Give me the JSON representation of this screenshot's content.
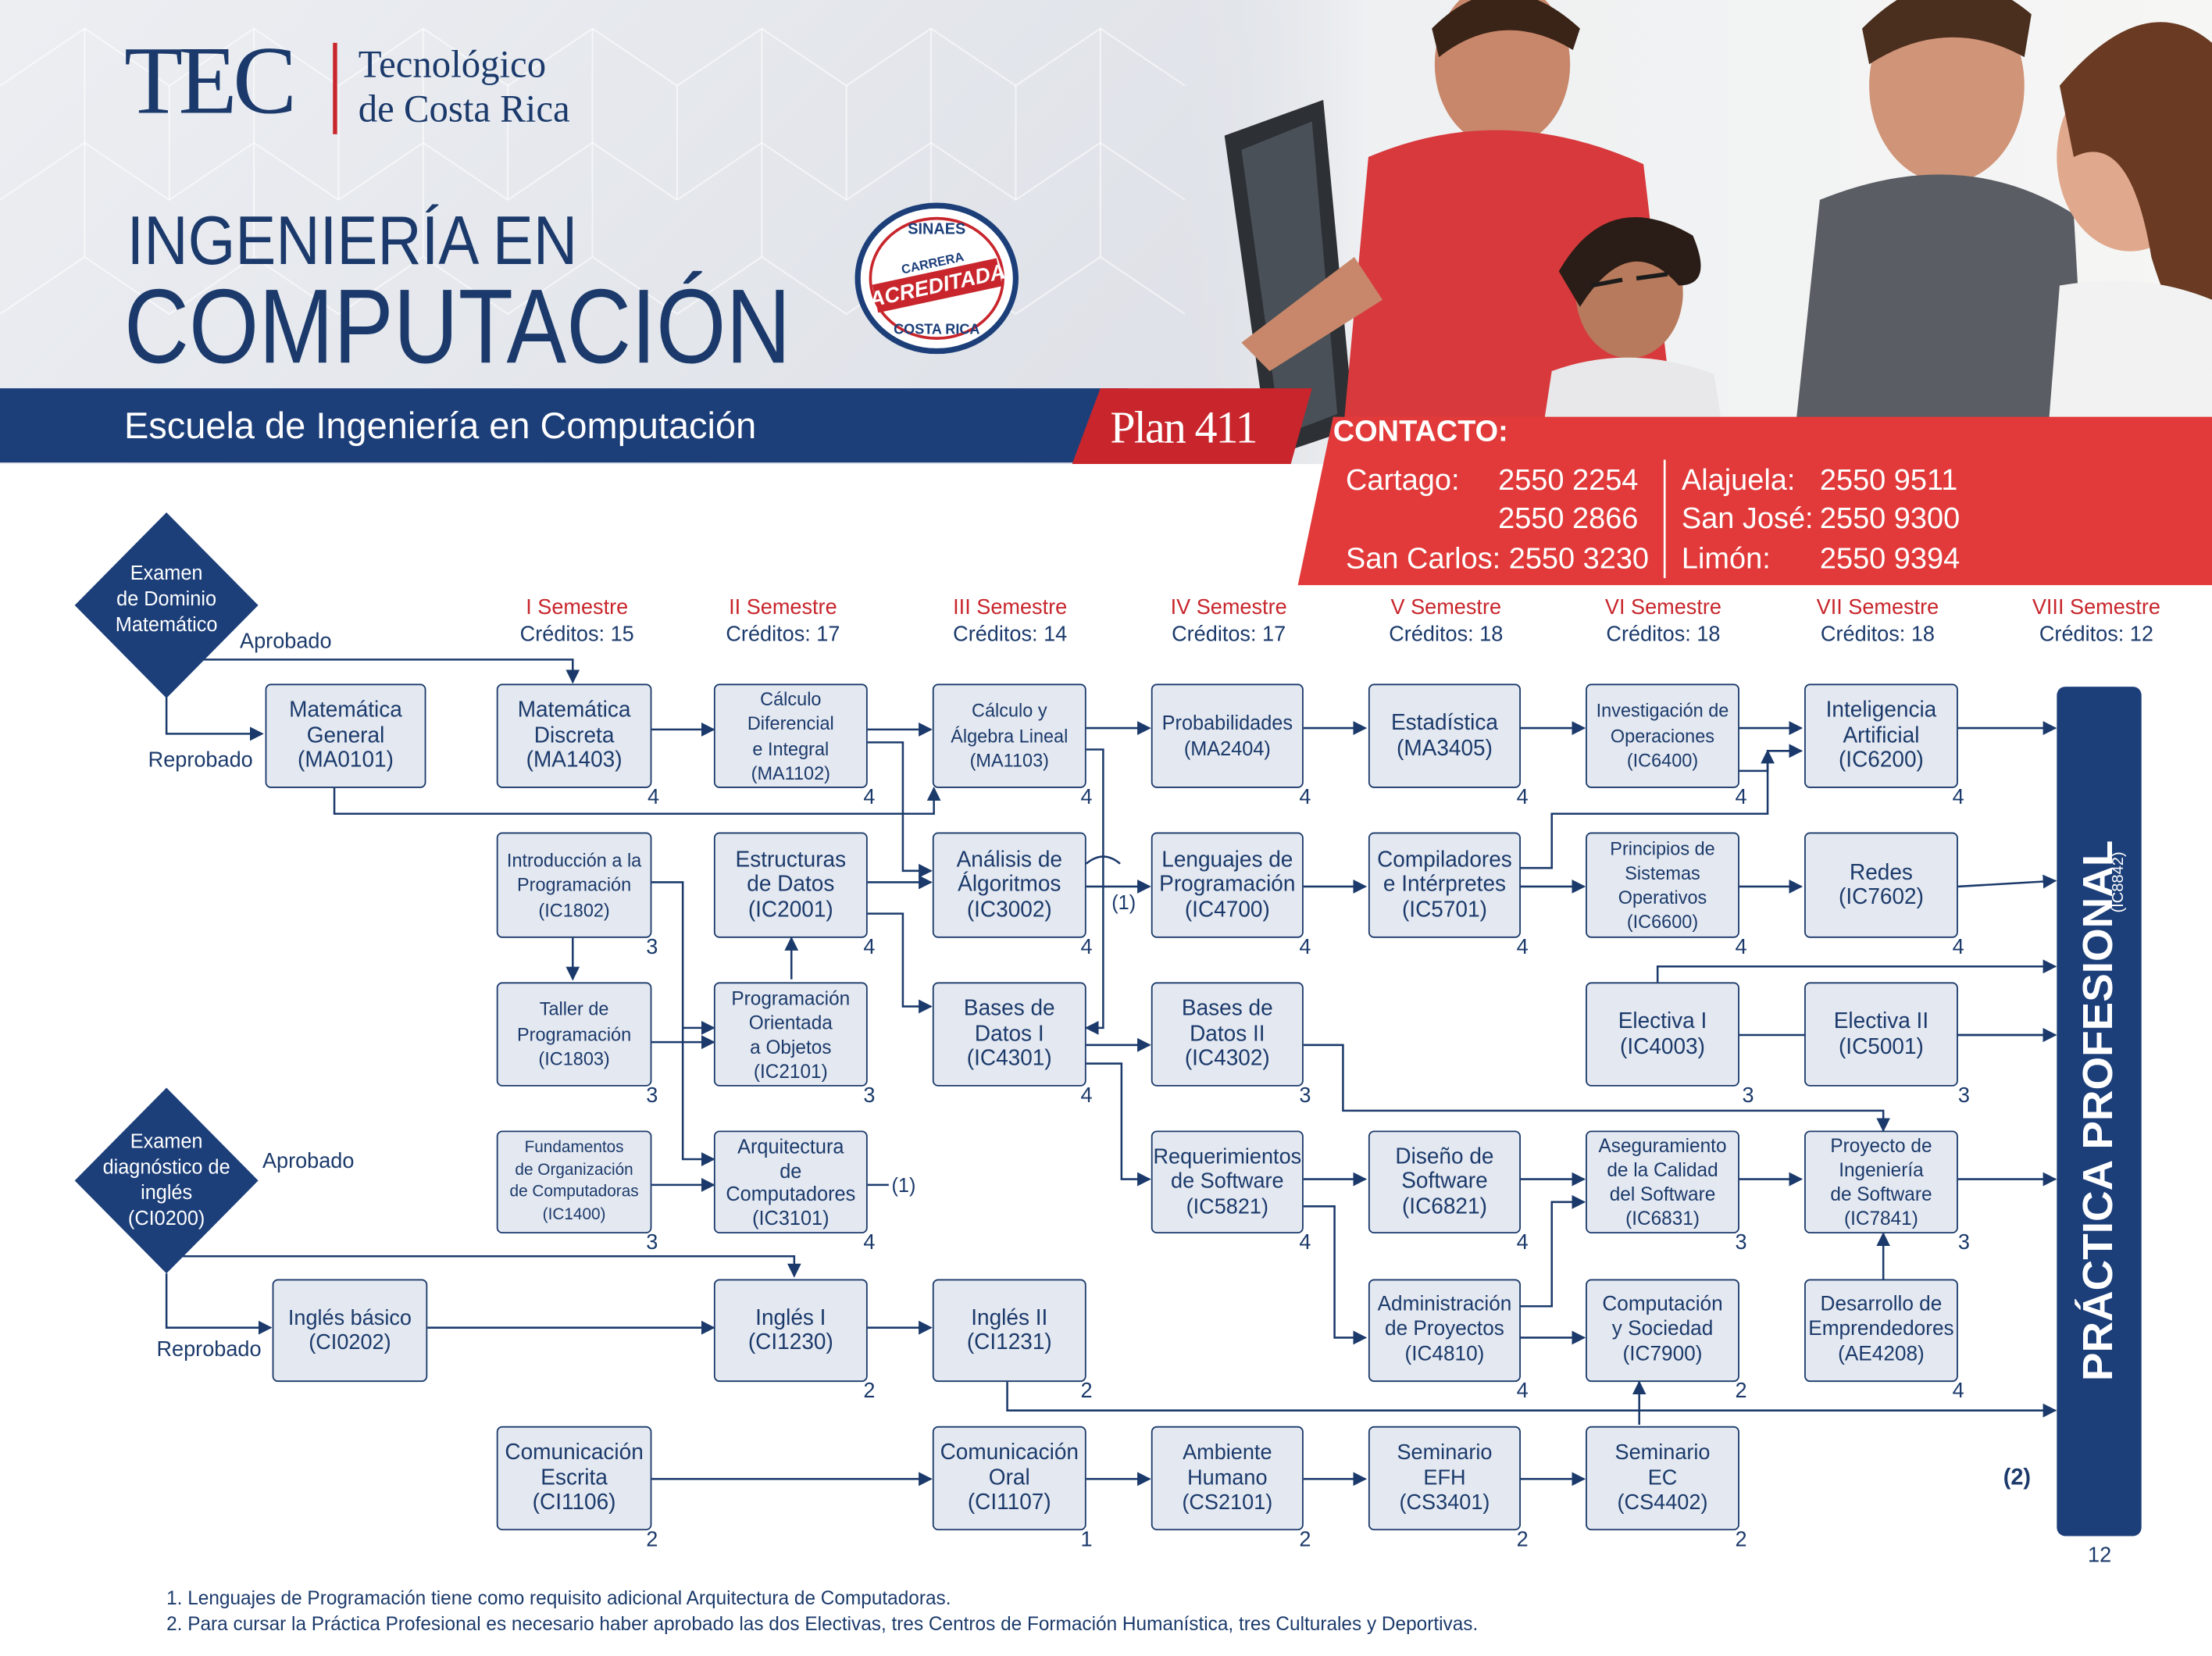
{
  "header": {
    "logo_acronym": "TEC",
    "logo_name_line1": "Tecnológico",
    "logo_name_line2": "de Costa Rica",
    "title_line1": "INGENIERÍA EN",
    "title_line2": "COMPUTACIÓN",
    "school": "Escuela de Ingeniería en Computación",
    "plan": "Plan 411",
    "seal": {
      "top": "SINAES",
      "middle1": "CARRERA",
      "middle2": "ACREDITADA",
      "bottom": "COSTA RICA"
    }
  },
  "contact": {
    "title": "CONTACTO:",
    "cartago_label": "Cartago:",
    "cartago_phone1": "2550 2254",
    "cartago_phone2": "2550 2866",
    "sancarlos": "San Carlos: 2550 3230",
    "alajuela_label": "Alajuela:",
    "alajuela_phone": "2550 9511",
    "sanjose_label": "San José:",
    "sanjose_phone": "2550 9300",
    "limon_label": "Limón:",
    "limon_phone": "2550 9394"
  },
  "semesters": [
    {
      "name": "I Semestre",
      "credits": "Créditos: 15"
    },
    {
      "name": "II Semestre",
      "credits": "Créditos: 17"
    },
    {
      "name": "III Semestre",
      "credits": "Créditos: 14"
    },
    {
      "name": "IV Semestre",
      "credits": "Créditos: 17"
    },
    {
      "name": "V Semestre",
      "credits": "Créditos: 18"
    },
    {
      "name": "VI Semestre",
      "credits": "Créditos: 18"
    },
    {
      "name": "VII Semestre",
      "credits": "Créditos: 18"
    },
    {
      "name": "VIII Semestre",
      "credits": "Créditos: 12"
    }
  ],
  "decisions": {
    "math": {
      "text": "Examen\nde Dominio\nMatemático",
      "pass": "Aprobado",
      "fail": "Reprobado"
    },
    "english": {
      "text": "Examen\ndiagnóstico de\ninglés\n(CI0200)",
      "pass": "Aprobado",
      "fail": "Reprobado"
    }
  },
  "courses": [
    {
      "text": "Matemática\nGeneral\n(MA0101)",
      "credits": ""
    },
    {
      "text": "Matemática\nDiscreta\n(MA1403)",
      "credits": "4"
    },
    {
      "text": "Cálculo Diferencial\ne Integral\n(MA1102)",
      "credits": "4"
    },
    {
      "text": "Cálculo y\nÁlgebra Lineal\n(MA1103)",
      "credits": "4"
    },
    {
      "text": "Probabilidades\n(MA2404)",
      "credits": "4"
    },
    {
      "text": "Estadística\n(MA3405)",
      "credits": "4"
    },
    {
      "text": "Investigación de\nOperaciones\n(IC6400)",
      "credits": "4"
    },
    {
      "text": "Inteligencia\nArtificial\n(IC6200)",
      "credits": "4"
    },
    {
      "text": "Introducción a la\nProgramación\n(IC1802)",
      "credits": "3"
    },
    {
      "text": "Estructuras\nde Datos\n(IC2001)",
      "credits": "4"
    },
    {
      "text": "Análisis de\nÁlgoritmos\n(IC3002)",
      "credits": "4"
    },
    {
      "text": "Lenguajes de\nProgramación\n(IC4700)",
      "credits": "4"
    },
    {
      "text": "Compiladores\ne Intérpretes\n(IC5701)",
      "credits": "4"
    },
    {
      "text": "Principios de\nSistemas\nOperativos\n(IC6600)",
      "credits": "4"
    },
    {
      "text": "Redes\n(IC7602)",
      "credits": "4"
    },
    {
      "text": "Taller de\nProgramación\n(IC1803)",
      "credits": "3"
    },
    {
      "text": "Programación\nOrientada\na Objetos\n(IC2101)",
      "credits": "3"
    },
    {
      "text": "Bases de\nDatos I\n(IC4301)",
      "credits": "4"
    },
    {
      "text": "Bases de\nDatos II\n(IC4302)",
      "credits": "3"
    },
    {
      "text": "Electiva I\n(IC4003)",
      "credits": "3"
    },
    {
      "text": "Electiva II\n(IC5001)",
      "credits": "3"
    },
    {
      "text": "Fundamentos\nde Organización\nde Computadoras\n(IC1400)",
      "credits": "3"
    },
    {
      "text": "Arquitectura\nde\nComputadores\n(IC3101)",
      "credits": "4"
    },
    {
      "text": "Requerimientos\nde Software\n(IC5821)",
      "credits": "4"
    },
    {
      "text": "Diseño de\nSoftware\n(IC6821)",
      "credits": "4"
    },
    {
      "text": "Aseguramiento\nde la Calidad\ndel Software\n(IC6831)",
      "credits": "3"
    },
    {
      "text": "Proyecto de\nIngeniería\nde Software\n(IC7841)",
      "credits": "3"
    },
    {
      "text": "Inglés básico\n(CI0202)",
      "credits": ""
    },
    {
      "text": "Inglés I\n(CI1230)",
      "credits": "2"
    },
    {
      "text": "Inglés II\n(CI1231)",
      "credits": "2"
    },
    {
      "text": "Administración\nde Proyectos\n(IC4810)",
      "credits": "4"
    },
    {
      "text": "Computación\ny Sociedad\n(IC7900)",
      "credits": "2"
    },
    {
      "text": "Desarrollo de\nEmprendedores\n(AE4208)",
      "credits": "4"
    },
    {
      "text": "Comunicación\nEscrita\n(CI1106)",
      "credits": "2"
    },
    {
      "text": "Comunicación\nOral\n(CI1107)",
      "credits": "1"
    },
    {
      "text": "Ambiente\nHumano\n(CS2101)",
      "credits": "2"
    },
    {
      "text": "Seminario\nEFH\n(CS3401)",
      "credits": "2"
    },
    {
      "text": "Seminario\nEC\n(CS4402)",
      "credits": "2"
    }
  ],
  "annotations": {
    "ref1": "(1)",
    "ref1b": "(1)",
    "ref2": "(2)"
  },
  "practice": {
    "title": "PRÁCTICA PROFESIONAL",
    "code": "(IC8842)",
    "credits": "12"
  },
  "notes": [
    "1. Lenguajes de Programación tiene como requisito adicional Arquitectura de Computadoras.",
    "2. Para cursar la Práctica Profesional es necesario haber aprobado las dos Electivas, tres Centros de Formación Humanística, tres Culturales y Deportivas."
  ],
  "colors": {
    "navy": "#1b3a6b",
    "band": "#1c3f7a",
    "red": "#c8262c",
    "box_fill": "#e4e8f0"
  }
}
